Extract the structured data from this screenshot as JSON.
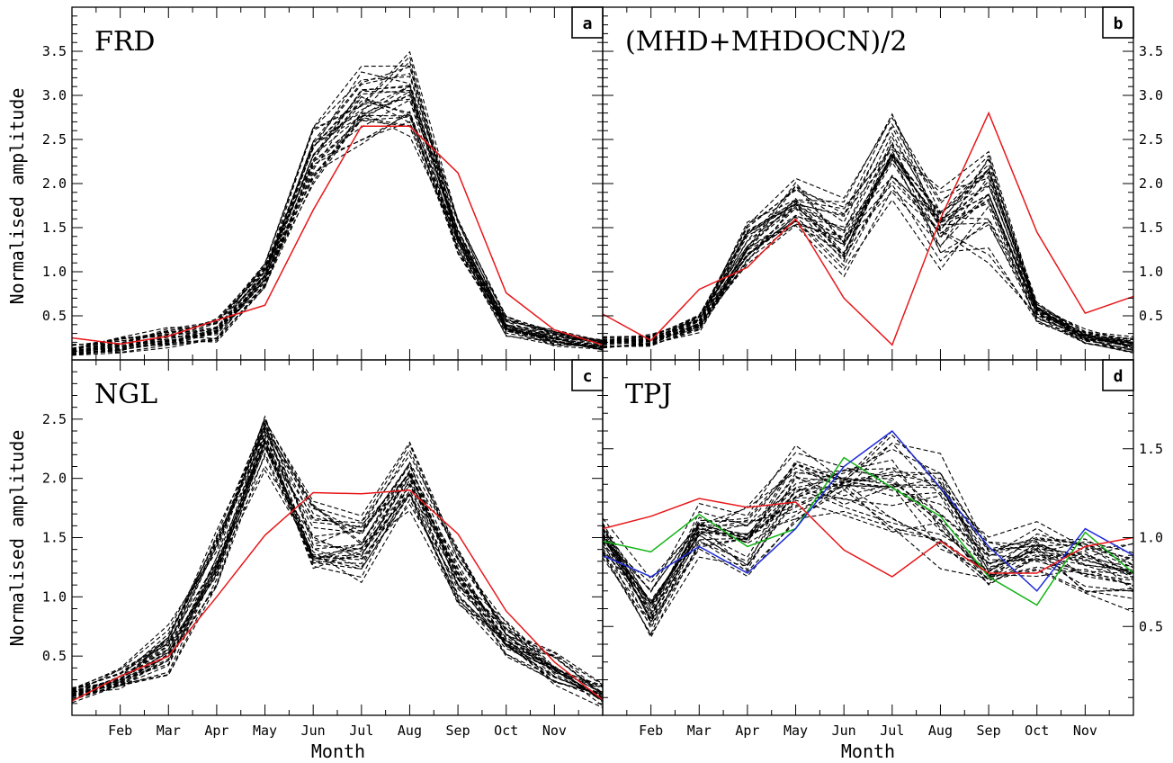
{
  "figure": {
    "ylabel": "Normalised amplitude",
    "xlabel": "Month",
    "month_ticks": [
      "Feb",
      "Mar",
      "Apr",
      "May",
      "Jun",
      "Jul",
      "Aug",
      "Sep",
      "Oct",
      "Nov"
    ]
  },
  "colors": {
    "dashed_ensemble": "#000000",
    "observed": "#e8171a",
    "blue_series": "#1e2bd6",
    "green_series": "#12b415"
  },
  "chart_data": [
    {
      "type": "line",
      "panel": "a",
      "title": "FRD",
      "x": [
        1,
        2,
        3,
        4,
        5,
        6,
        7,
        8,
        9,
        10,
        11,
        12
      ],
      "ylim": [
        0,
        4
      ],
      "yticks": [
        0.5,
        1.0,
        1.5,
        2.0,
        2.5,
        3.0,
        3.5
      ],
      "ytick_side": "left",
      "red": [
        0.25,
        0.18,
        0.27,
        0.45,
        0.62,
        1.7,
        2.65,
        2.65,
        2.12,
        0.76,
        0.34,
        0.17
      ],
      "ensemble_count": 30,
      "ensemble_base": [
        0.12,
        0.17,
        0.25,
        0.33,
        0.95,
        2.3,
        2.85,
        3.0,
        1.4,
        0.38,
        0.25,
        0.17
      ],
      "ensemble_spread": [
        0.06,
        0.08,
        0.1,
        0.12,
        0.12,
        0.28,
        0.4,
        0.42,
        0.2,
        0.1,
        0.09,
        0.06
      ]
    },
    {
      "type": "line",
      "panel": "b",
      "title": "(MHD+MHDOCN)/2",
      "x": [
        1,
        2,
        3,
        4,
        5,
        6,
        7,
        8,
        9,
        10,
        11,
        12
      ],
      "ylim": [
        0,
        4
      ],
      "yticks": [
        0.5,
        1.0,
        1.5,
        2.0,
        2.5,
        3.0,
        3.5
      ],
      "ytick_side": "right",
      "red": [
        0.52,
        0.22,
        0.8,
        1.05,
        1.6,
        0.7,
        0.17,
        1.6,
        2.8,
        1.45,
        0.53,
        0.72
      ],
      "ensemble_count": 30,
      "ensemble_base": [
        0.2,
        0.22,
        0.42,
        1.3,
        1.78,
        1.35,
        2.35,
        1.5,
        1.9,
        0.55,
        0.25,
        0.17
      ],
      "ensemble_spread": [
        0.06,
        0.06,
        0.1,
        0.25,
        0.28,
        0.4,
        0.5,
        0.4,
        0.75,
        0.12,
        0.08,
        0.08
      ]
    },
    {
      "type": "line",
      "panel": "c",
      "title": "NGL",
      "x": [
        1,
        2,
        3,
        4,
        5,
        6,
        7,
        8,
        9,
        10,
        11,
        12
      ],
      "ylim": [
        0,
        3
      ],
      "yticks": [
        0.5,
        1.0,
        1.5,
        2.0,
        2.5
      ],
      "ytick_side": "left",
      "red": [
        0.12,
        0.33,
        0.5,
        1.0,
        1.52,
        1.88,
        1.87,
        1.9,
        1.53,
        0.88,
        0.45,
        0.13
      ],
      "ensemble_count": 30,
      "ensemble_base": [
        0.18,
        0.3,
        0.55,
        1.3,
        2.4,
        1.5,
        1.45,
        2.05,
        1.2,
        0.65,
        0.4,
        0.18
      ],
      "ensemble_spread": [
        0.06,
        0.09,
        0.18,
        0.28,
        0.3,
        0.28,
        0.28,
        0.3,
        0.25,
        0.16,
        0.14,
        0.09
      ]
    },
    {
      "type": "line",
      "panel": "d",
      "title": "TPJ",
      "x": [
        1,
        2,
        3,
        4,
        5,
        6,
        7,
        8,
        9,
        10,
        11,
        12
      ],
      "ylim": [
        0,
        2
      ],
      "yticks": [
        0.5,
        1.0,
        1.5
      ],
      "ytick_side": "right",
      "red": [
        1.05,
        1.12,
        1.22,
        1.17,
        1.2,
        0.93,
        0.78,
        0.98,
        0.8,
        0.8,
        0.95,
        1.0
      ],
      "blue": [
        0.9,
        0.78,
        0.95,
        0.8,
        1.05,
        1.4,
        1.6,
        1.28,
        0.95,
        0.7,
        1.05,
        0.9
      ],
      "green": [
        0.98,
        0.92,
        1.13,
        0.95,
        1.05,
        1.45,
        1.28,
        1.12,
        0.78,
        0.62,
        1.03,
        0.8
      ],
      "ensemble_count": 30,
      "ensemble_base": [
        1.0,
        0.6,
        1.05,
        1.0,
        1.3,
        1.3,
        1.3,
        1.2,
        0.85,
        0.95,
        0.85,
        0.8
      ],
      "ensemble_spread": [
        0.15,
        0.18,
        0.18,
        0.2,
        0.22,
        0.18,
        0.3,
        0.35,
        0.15,
        0.15,
        0.15,
        0.18
      ]
    }
  ]
}
